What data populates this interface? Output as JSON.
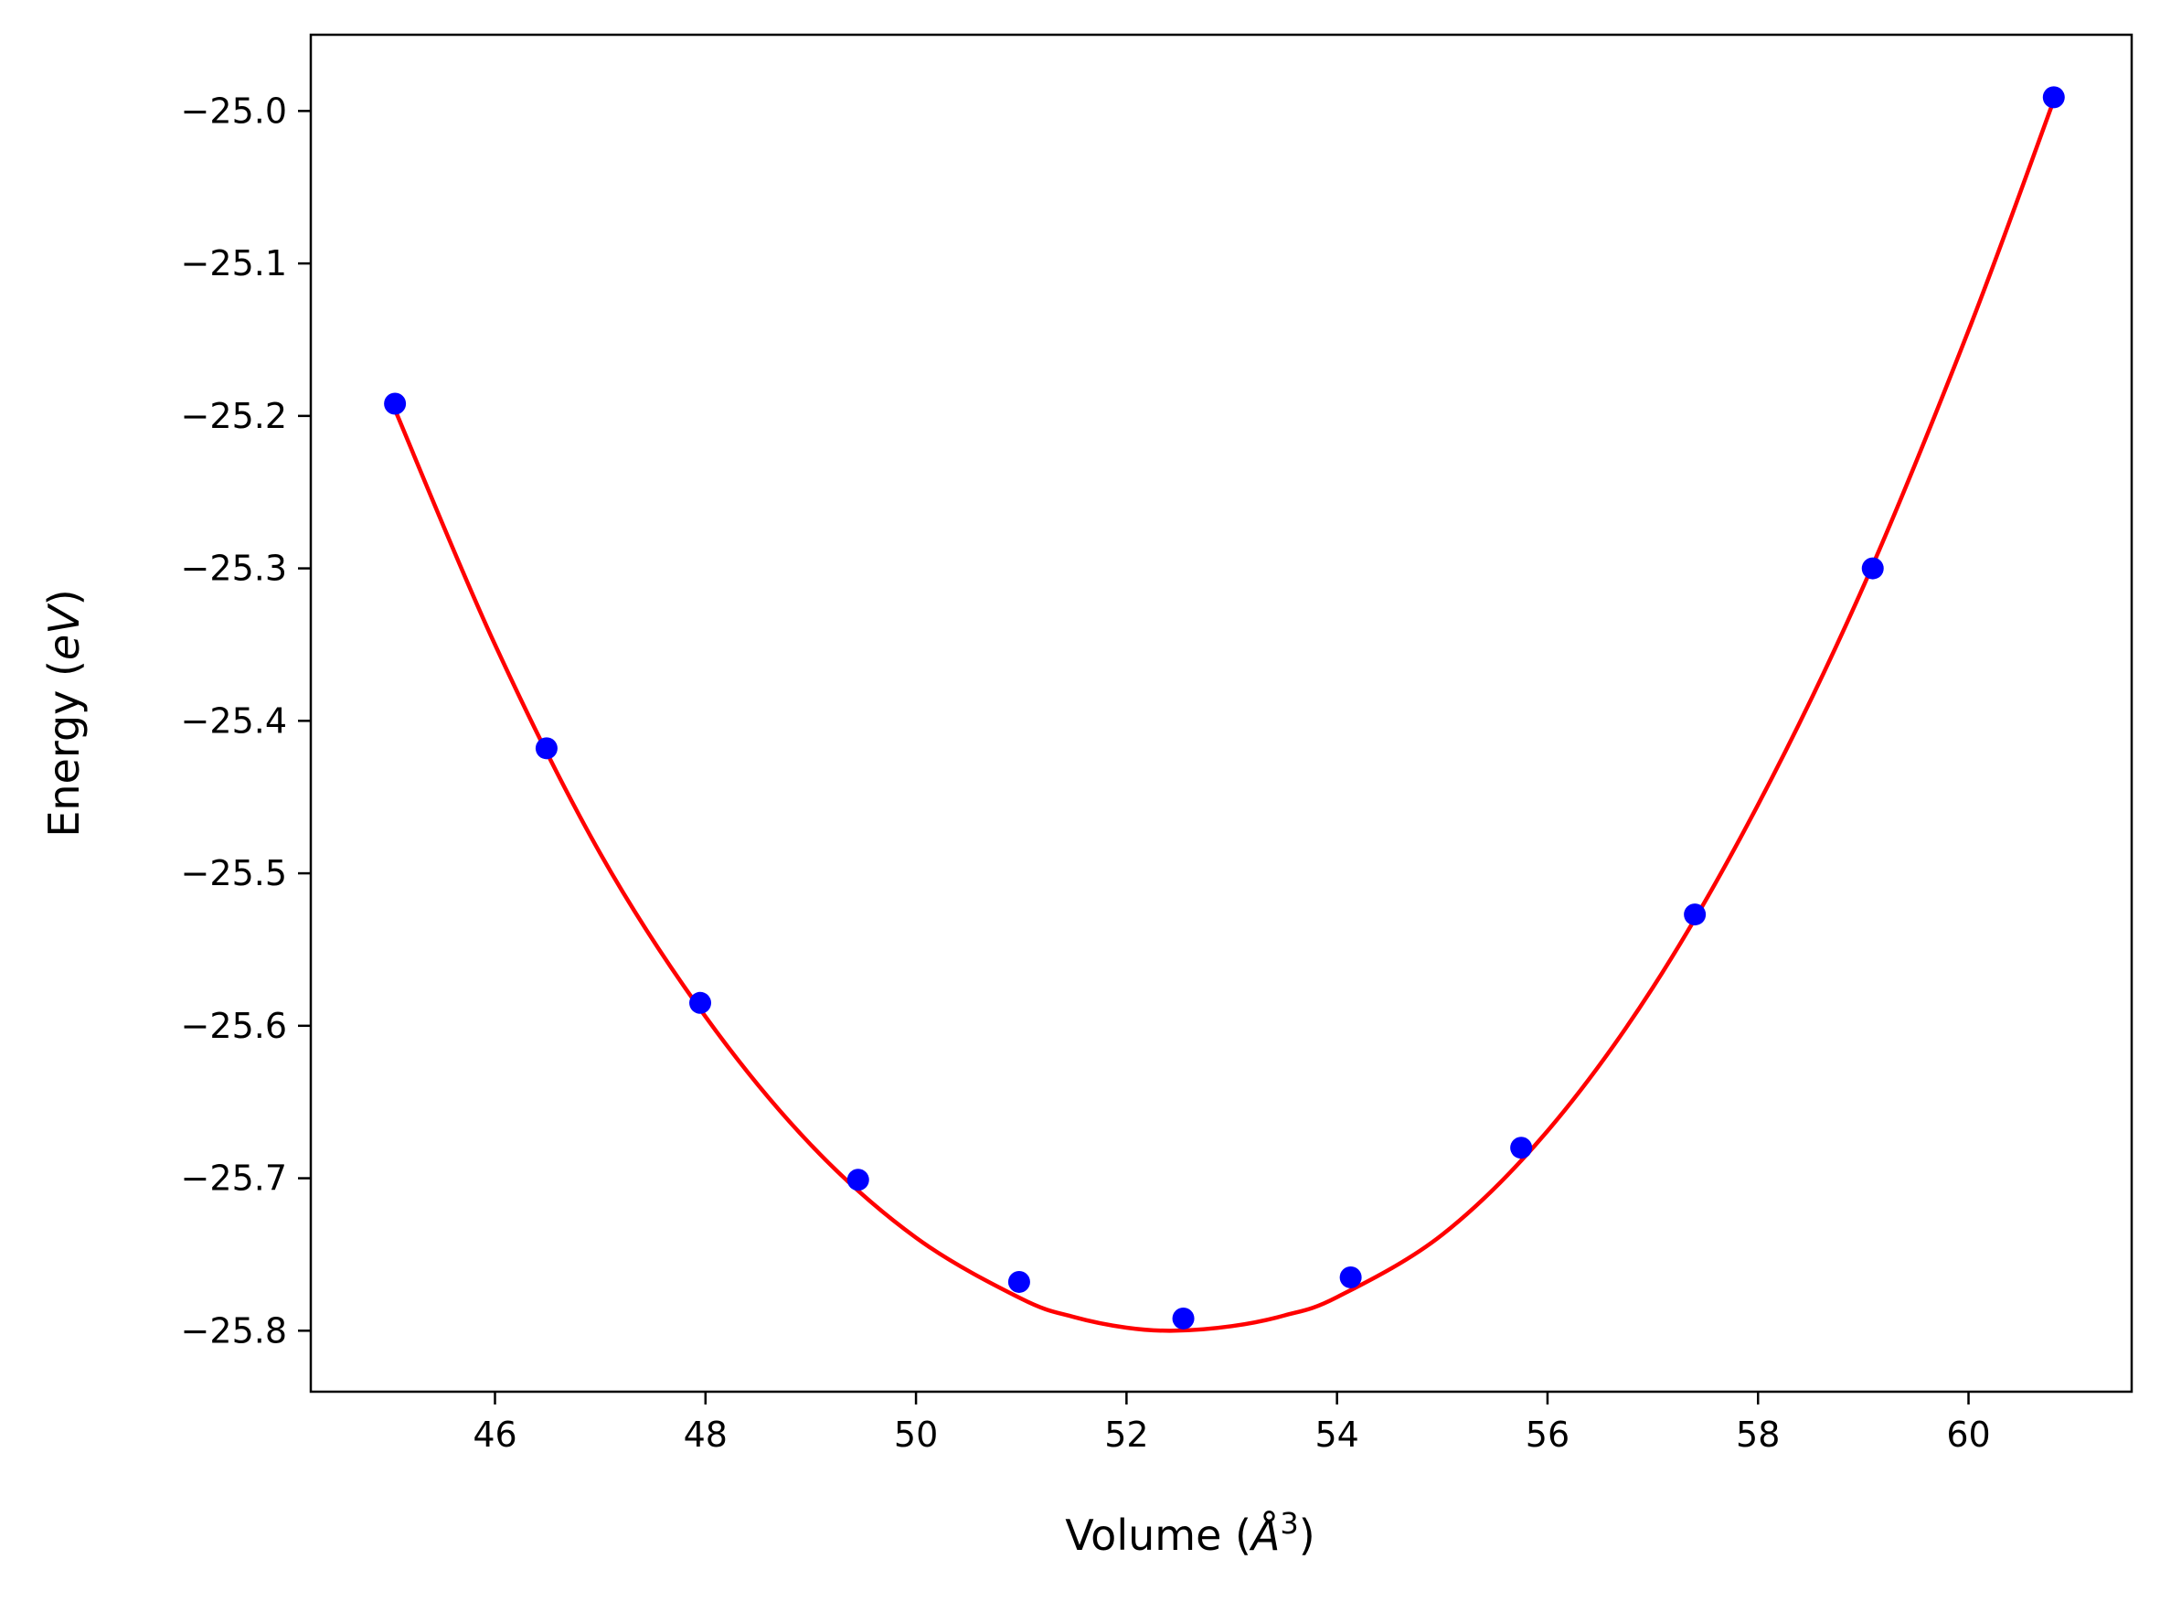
{
  "chart_data": {
    "type": "scatter",
    "title": "",
    "xlabel": "Volume (Å³)",
    "xlabel_parts": {
      "prefix": "Volume (",
      "unit": "Å",
      "superscript": "3",
      "suffix": ")"
    },
    "ylabel": "Energy (eV)",
    "ylabel_parts": {
      "prefix": "Energy (",
      "unit": "eV",
      "suffix": ")"
    },
    "xlim": [
      44.25,
      61.55
    ],
    "ylim": [
      -25.84,
      -24.95
    ],
    "x_ticks": [
      46,
      48,
      50,
      52,
      54,
      56,
      58,
      60
    ],
    "x_tick_labels": [
      "46",
      "48",
      "50",
      "52",
      "54",
      "56",
      "58",
      "60"
    ],
    "y_ticks": [
      -25.8,
      -25.7,
      -25.6,
      -25.5,
      -25.4,
      -25.3,
      -25.2,
      -25.1,
      -25.0
    ],
    "y_tick_labels": [
      "−25.8",
      "−25.7",
      "−25.6",
      "−25.5",
      "−25.4",
      "−25.3",
      "−25.2",
      "−25.1",
      "−25.0"
    ],
    "grid": false,
    "series": [
      {
        "kind": "points",
        "color": "#0000ff",
        "x": [
          45.05,
          46.49,
          47.95,
          49.45,
          50.98,
          52.54,
          54.13,
          55.75,
          57.4,
          59.09,
          60.81
        ],
        "y": [
          -25.192,
          -25.418,
          -25.585,
          -25.701,
          -25.768,
          -25.792,
          -25.765,
          -25.68,
          -25.527,
          -25.3,
          -24.991
        ]
      },
      {
        "kind": "fit",
        "color": "#ff0000",
        "x": [
          45.05,
          46.0,
          47.0,
          48.0,
          49.0,
          50.0,
          51.0,
          51.5,
          52.0,
          52.45,
          53.0,
          53.5,
          54.0,
          55.0,
          56.0,
          57.0,
          58.0,
          59.0,
          60.0,
          60.81
        ],
        "y": [
          -25.196,
          -25.35,
          -25.487,
          -25.594,
          -25.678,
          -25.739,
          -25.779,
          -25.791,
          -25.798,
          -25.8,
          -25.797,
          -25.79,
          -25.778,
          -25.737,
          -25.669,
          -25.575,
          -25.455,
          -25.312,
          -25.144,
          -24.993
        ]
      }
    ]
  }
}
